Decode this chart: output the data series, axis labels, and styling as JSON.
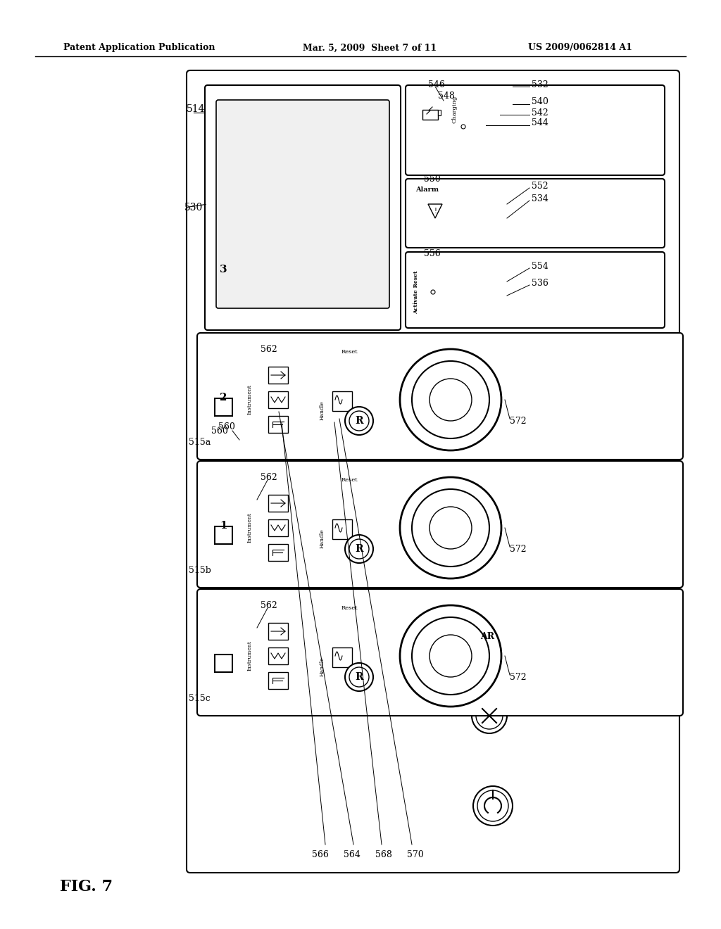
{
  "bg_color": "#ffffff",
  "header_left": "Patent Application Publication",
  "header_mid": "Mar. 5, 2009  Sheet 7 of 11",
  "header_right": "US 2009/0062814 A1",
  "fig_label": "FIG. 7",
  "main_label": "514",
  "label_530": "530",
  "label_515a": "515a",
  "label_515b": "515b",
  "label_515c": "515c",
  "label_562": "562",
  "label_564": "564",
  "label_566": "566",
  "label_568": "568",
  "label_570": "570",
  "label_572": "572",
  "label_560": "560",
  "label_532": "532",
  "label_534": "534",
  "label_536": "536",
  "label_540": "540",
  "label_542": "542",
  "label_544": "544",
  "label_546": "546",
  "label_548": "548",
  "label_550": "550",
  "label_552": "552",
  "label_554": "554",
  "label_556": "556"
}
